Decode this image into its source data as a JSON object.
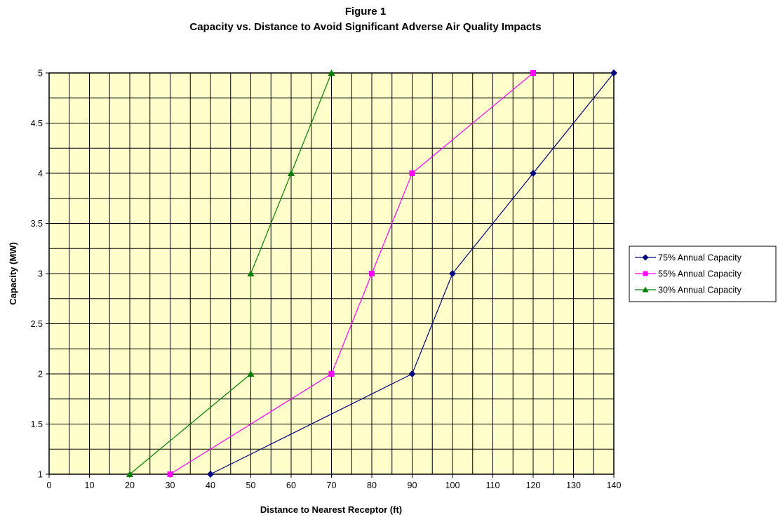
{
  "chart_data": {
    "type": "line",
    "title": "Figure 1",
    "subtitle": "Capacity vs. Distance to Avoid Significant Adverse Air Quality Impacts",
    "xlabel": "Distance to Nearest Receptor (ft)",
    "ylabel": "Capacity (MW)",
    "xlim": [
      0,
      140
    ],
    "ylim": [
      1,
      5
    ],
    "x_ticks": [
      0,
      10,
      20,
      30,
      40,
      50,
      60,
      70,
      80,
      90,
      100,
      110,
      120,
      130,
      140
    ],
    "y_ticks": [
      1,
      1.5,
      2,
      2.5,
      3,
      3.5,
      4,
      4.5,
      5
    ],
    "x_minor_step": 5,
    "y_minor_step": 0.25,
    "grid": true,
    "plot_background": "#ffffcc",
    "legend_position": "right",
    "series": [
      {
        "name": "75% Annual Capacity",
        "color": "#000080",
        "marker": "diamond",
        "points": [
          [
            40,
            1
          ],
          [
            90,
            2
          ],
          [
            100,
            3
          ],
          [
            120,
            4
          ],
          [
            140,
            5
          ]
        ]
      },
      {
        "name": "55% Annual Capacity",
        "color": "#ff00ff",
        "marker": "square",
        "points": [
          [
            30,
            1
          ],
          [
            70,
            2
          ],
          [
            80,
            3
          ],
          [
            90,
            4
          ],
          [
            120,
            5
          ]
        ]
      },
      {
        "name": "30% Annual Capacity",
        "color": "#008000",
        "marker": "triangle",
        "points": [
          [
            20,
            1
          ],
          [
            50,
            2
          ],
          [
            50,
            3
          ],
          [
            60,
            4
          ],
          [
            70,
            5
          ]
        ]
      }
    ]
  }
}
